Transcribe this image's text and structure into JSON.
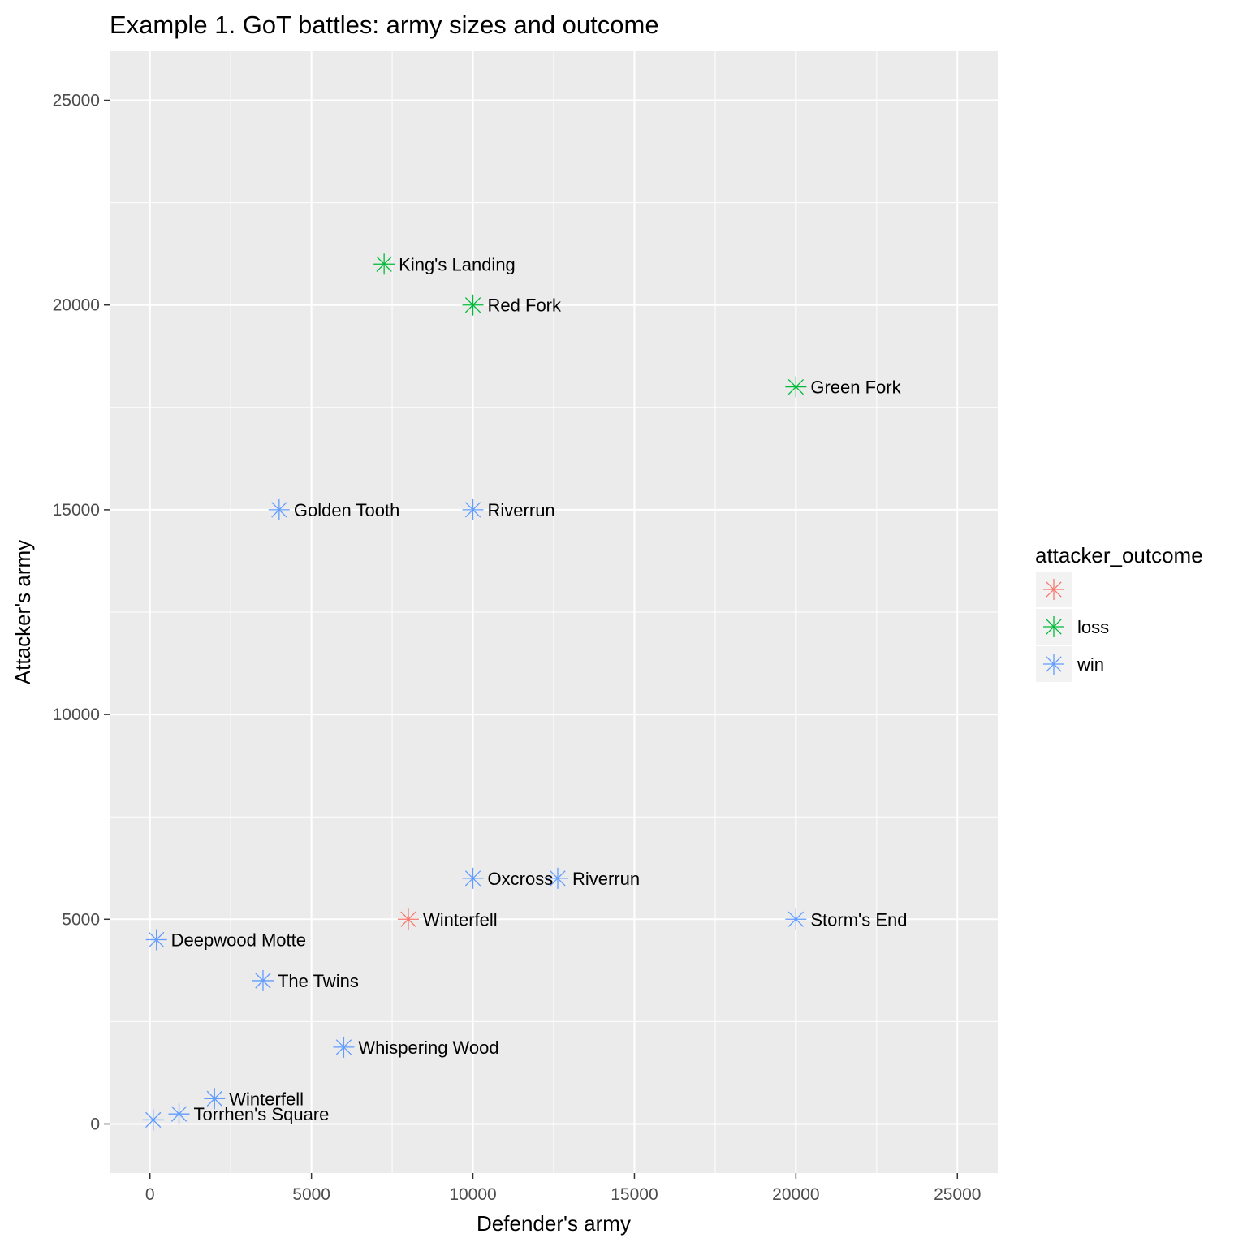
{
  "chart_data": {
    "type": "scatter",
    "title": "Example 1. GoT battles: army sizes and outcome",
    "xlabel": "Defender's army",
    "ylabel": "Attacker's army",
    "xlim": [
      -1250,
      26250
    ],
    "ylim": [
      -1200,
      26200
    ],
    "xticks": [
      0,
      5000,
      10000,
      15000,
      20000,
      25000
    ],
    "yticks": [
      0,
      5000,
      10000,
      15000,
      20000,
      25000
    ],
    "xtick_labels": [
      "0",
      "5000",
      "10000",
      "15000",
      "20000",
      "25000"
    ],
    "ytick_labels": [
      "0",
      "5000",
      "10000",
      "15000",
      "20000",
      "25000"
    ],
    "grid": true,
    "marker": "asterisk",
    "legend": {
      "title": "attacker_outcome",
      "position": "right",
      "entries": [
        {
          "label": "",
          "color": "#F8766D"
        },
        {
          "label": "loss",
          "color": "#00BA38"
        },
        {
          "label": "win",
          "color": "#619CFF"
        }
      ]
    },
    "points": [
      {
        "label": "King's Landing",
        "x": 7250,
        "y": 21000,
        "outcome": "loss"
      },
      {
        "label": "Red Fork",
        "x": 10000,
        "y": 20000,
        "outcome": "loss"
      },
      {
        "label": "Green Fork",
        "x": 20000,
        "y": 18000,
        "outcome": "loss"
      },
      {
        "label": "Golden Tooth",
        "x": 4000,
        "y": 15000,
        "outcome": "win"
      },
      {
        "label": "Riverrun",
        "x": 10000,
        "y": 15000,
        "outcome": "win"
      },
      {
        "label": "Oxcross",
        "x": 10000,
        "y": 6000,
        "outcome": "win"
      },
      {
        "label": "Riverrun",
        "x": 12625,
        "y": 6000,
        "outcome": "win"
      },
      {
        "label": "Winterfell",
        "x": 8000,
        "y": 5000,
        "outcome": ""
      },
      {
        "label": "Storm's End",
        "x": 20000,
        "y": 5000,
        "outcome": "win"
      },
      {
        "label": "Deepwood Motte",
        "x": 200,
        "y": 4500,
        "outcome": "win"
      },
      {
        "label": "The Twins",
        "x": 3500,
        "y": 3500,
        "outcome": "win"
      },
      {
        "label": "Whispering Wood",
        "x": 6000,
        "y": 1875,
        "outcome": "win"
      },
      {
        "label": "Winterfell",
        "x": 2000,
        "y": 618,
        "outcome": "win"
      },
      {
        "label": "Torrhen's Square",
        "x": 900,
        "y": 244,
        "outcome": "win"
      },
      {
        "label": "",
        "x": 100,
        "y": 100,
        "outcome": "win"
      }
    ]
  }
}
